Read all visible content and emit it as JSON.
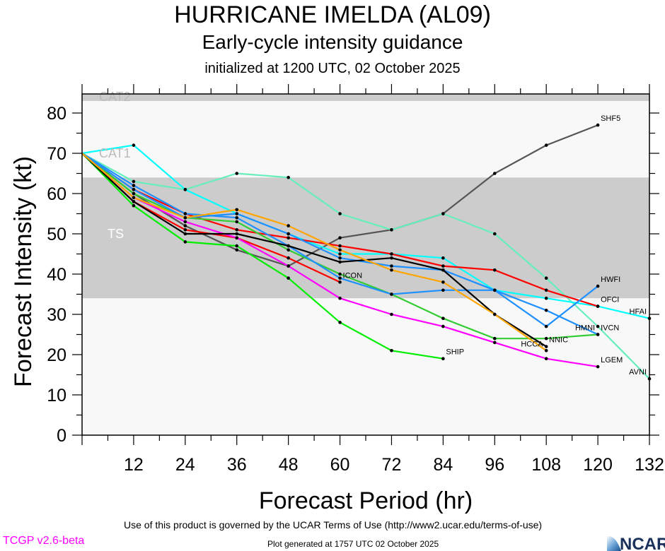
{
  "header": {
    "title": "HURRICANE IMELDA (AL09)",
    "subtitle": "Early-cycle intensity guidance",
    "init": "initialized at 1200 UTC, 02 October 2025"
  },
  "footer": {
    "terms": "Use of this product is governed by the UCAR Terms of Use (http://www2.ucar.edu/terms-of-use)",
    "generated": "Plot generated at 1757 UTC   02 October 2025",
    "version": "TCGP v2.6-beta",
    "logo": "NCAR"
  },
  "chart_data": {
    "type": "line",
    "xlabel": "Forecast Period (hr)",
    "ylabel": "Forecast Intensity (kt)",
    "xlim": [
      0,
      132
    ],
    "ylim": [
      0,
      83
    ],
    "xticks": [
      12,
      24,
      36,
      48,
      60,
      72,
      84,
      96,
      108,
      120,
      132
    ],
    "yticks": [
      0,
      10,
      20,
      30,
      40,
      50,
      60,
      70,
      80
    ],
    "bands": [
      {
        "label": "TS",
        "from": 34,
        "to": 64,
        "color": "#cccccc"
      },
      {
        "label": "CAT1",
        "from": 64,
        "to": 83,
        "color": "#f8f8f8"
      },
      {
        "label": "CAT2",
        "from": 83,
        "to": 96,
        "color": "#cccccc"
      }
    ],
    "x": [
      0,
      12,
      24,
      36,
      48,
      60,
      72,
      84,
      96,
      108,
      120,
      132
    ],
    "series": [
      {
        "name": "SHF5",
        "color": "#555555",
        "values": [
          70,
          60,
          52,
          46,
          42,
          49,
          51,
          55,
          65,
          72,
          77,
          null
        ]
      },
      {
        "name": "AVNI",
        "color": "#66eebb",
        "values": [
          70,
          63,
          61,
          65,
          64,
          55,
          51,
          55,
          50,
          39,
          27,
          14
        ]
      },
      {
        "name": "HFAI",
        "color": "#00ffff",
        "values": [
          70,
          72,
          61,
          55,
          50,
          45,
          45,
          44,
          36,
          34,
          32,
          29
        ]
      },
      {
        "name": "OFCI",
        "color": "#ff0000",
        "values": [
          70,
          61,
          55,
          51,
          49,
          47,
          45,
          42,
          41,
          36,
          32,
          null
        ]
      },
      {
        "name": "ICON",
        "color": "#ff0000",
        "values": [
          70,
          58,
          51,
          49,
          44,
          38,
          null,
          null,
          null,
          null,
          null,
          null
        ]
      },
      {
        "name": "IVCN",
        "color": "#33cc33",
        "values": [
          70,
          60,
          54,
          53,
          46,
          40,
          35,
          29,
          24,
          24,
          25,
          null
        ]
      },
      {
        "name": "LGEM",
        "color": "#ff00ff",
        "values": [
          70,
          59,
          53,
          49,
          42,
          34,
          30,
          27,
          23,
          19,
          17,
          null
        ]
      },
      {
        "name": "SHIP",
        "color": "#00ee00",
        "values": [
          70,
          57,
          48,
          47,
          39,
          28,
          21,
          19,
          null,
          null,
          null,
          null
        ]
      },
      {
        "name": "HWFI",
        "color": "#1e90ff",
        "values": [
          70,
          62,
          55,
          54,
          47,
          39,
          35,
          36,
          36,
          27,
          37,
          null
        ]
      },
      {
        "name": "HMNI",
        "color": "#1e90ff",
        "values": [
          70,
          61,
          54,
          55,
          50,
          44,
          42,
          41,
          36,
          31,
          25,
          null
        ]
      },
      {
        "name": "NNIC",
        "color": "#000000",
        "values": [
          70,
          58,
          50,
          50,
          47,
          43,
          44,
          41,
          30,
          22,
          null,
          null
        ]
      },
      {
        "name": "HCCA",
        "color": "#ffa500",
        "values": [
          70,
          59,
          54,
          56,
          52,
          46,
          41,
          38,
          30,
          21,
          null,
          null
        ]
      }
    ]
  }
}
